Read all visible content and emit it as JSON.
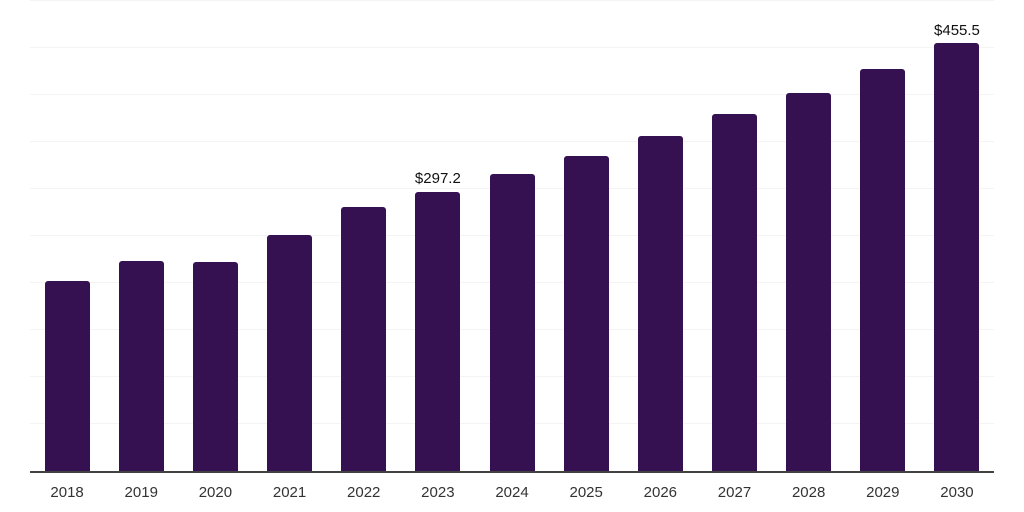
{
  "chart_data": {
    "type": "bar",
    "title": "",
    "xlabel": "",
    "ylabel": "",
    "categories": [
      "2018",
      "2019",
      "2020",
      "2021",
      "2022",
      "2023",
      "2024",
      "2025",
      "2026",
      "2027",
      "2028",
      "2029",
      "2030"
    ],
    "values": [
      201.7,
      223.0,
      221.9,
      251.6,
      281.3,
      297.2,
      315.9,
      335.6,
      356.7,
      379.4,
      402.6,
      428.0,
      455.5
    ],
    "data_labels": {
      "2023": "$297.2",
      "2030": "$455.5"
    },
    "ylim": [
      0,
      500
    ],
    "grid_step": 50,
    "grid_on": true,
    "y_axis_tick_labels_visible": false,
    "legend_position": "none",
    "colors": {
      "bar": "#361151",
      "gridline": "#f4f4f4",
      "axis_line": "#424242",
      "tick_label": "#333333",
      "data_label": "#111111",
      "background": "#ffffff"
    }
  }
}
